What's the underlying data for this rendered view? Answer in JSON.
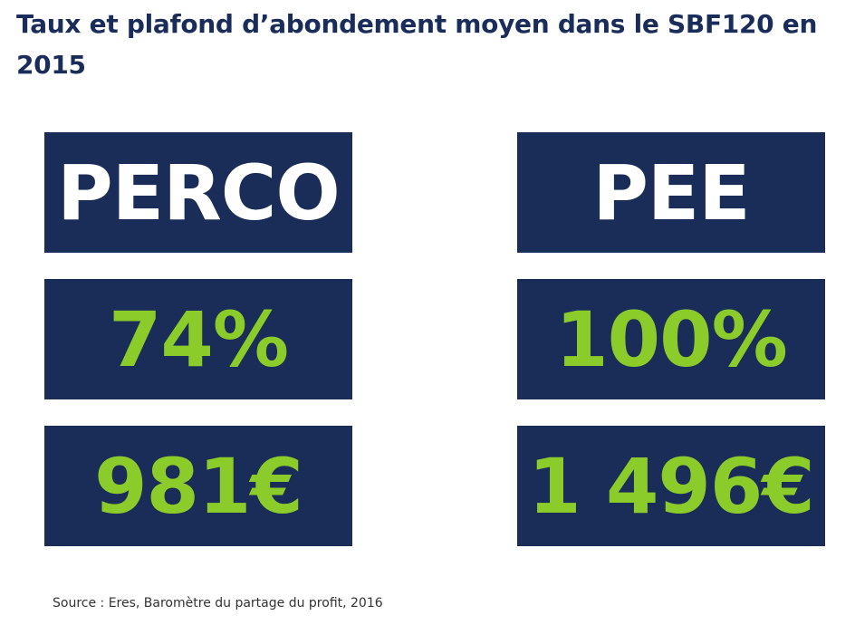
{
  "title": "Taux et plafond d’abondement moyen dans le SBF120 en 2015",
  "columns": [
    {
      "header": "PERCO",
      "rate": "74%",
      "cap": "981€"
    },
    {
      "header": "PEE",
      "rate": "100%",
      "cap": "1 496€"
    }
  ],
  "source": "Source : Eres, Baromètre du partage du profit, 2016",
  "colors": {
    "tile_background": "#1a2d58",
    "title_text": "#1a2d5a",
    "header_text": "#ffffff",
    "value_text": "#8ccc2a"
  }
}
